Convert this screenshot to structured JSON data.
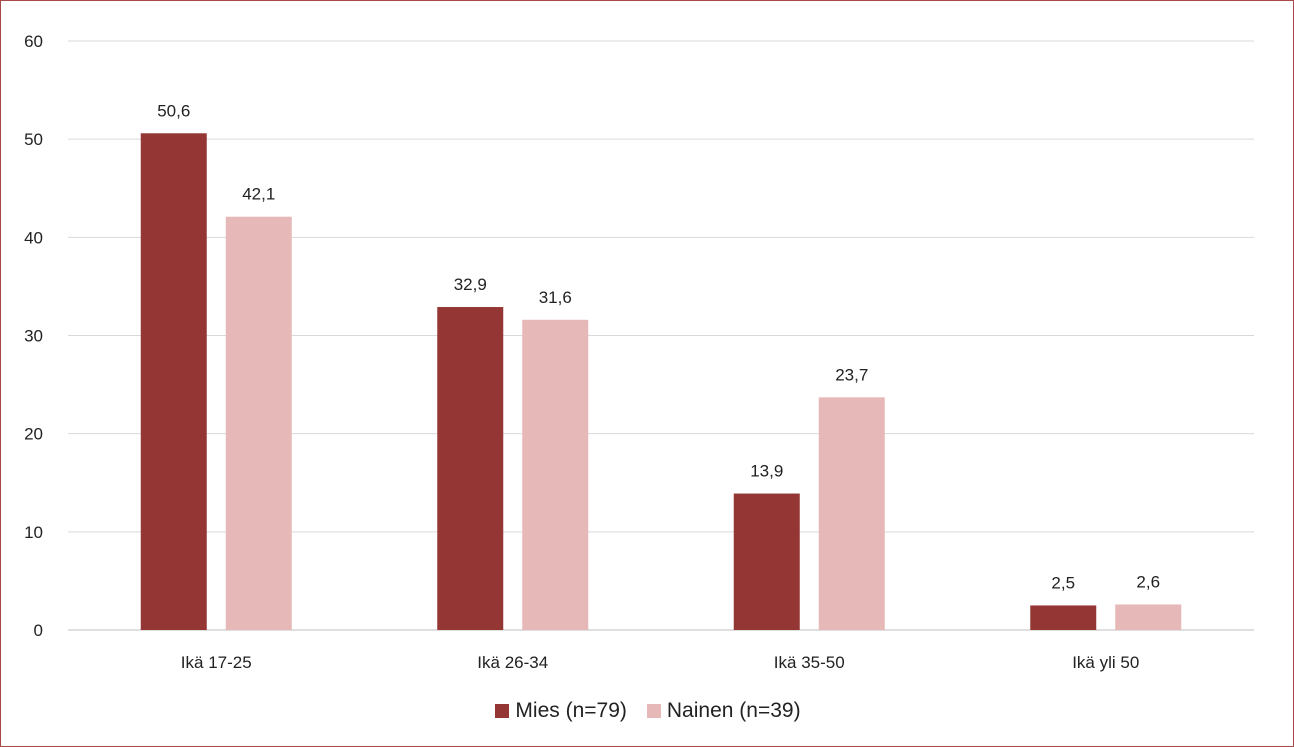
{
  "chart_data": {
    "type": "bar",
    "categories": [
      "Ikä 17-25",
      "Ikä 26-34",
      "Ikä 35-50",
      "Ikä yli 50"
    ],
    "series": [
      {
        "name": "Mies (n=79)",
        "values": [
          50.6,
          32.9,
          13.9,
          2.5
        ],
        "labels": [
          "50,6",
          "32,9",
          "13,9",
          "2,5"
        ],
        "color": "#943634"
      },
      {
        "name": "Nainen (n=39)",
        "values": [
          42.1,
          31.6,
          23.7,
          2.6
        ],
        "labels": [
          "42,1",
          "31,6",
          "23,7",
          "2,6"
        ],
        "color": "#e6b8b7"
      }
    ],
    "yticks": [
      "0",
      "10",
      "20",
      "30",
      "40",
      "50",
      "60"
    ],
    "ylim": [
      0,
      60
    ],
    "grid": true,
    "legend_position": "bottom",
    "border_color": "#a94a4a",
    "grid_color": "#d9d9d9"
  }
}
